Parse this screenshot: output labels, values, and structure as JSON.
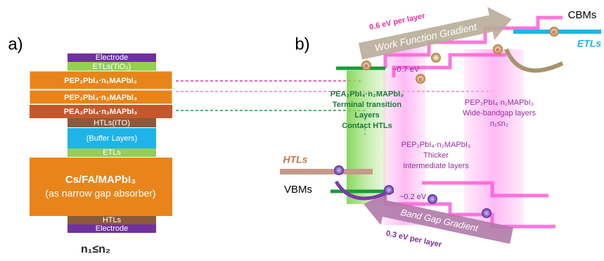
{
  "panel_a": {
    "label": "a)",
    "layers": [
      "Electrode",
      "ETLs(TiO₂)",
      "PEP₂PbI₄·n₁MAPbI₃",
      "PEP₂PbI₄·n₂MAPbI₃",
      "PEA₂PbI₄·n₂MAPbI₃",
      "HTLs(ITO)",
      "(Buffer Layers)",
      "ETLs",
      "Cs/FA/MAPbI₃",
      "(as narrow gap absorber)",
      "HTLs",
      "Electrode"
    ],
    "note": "n₁≤n₂"
  },
  "panel_b": {
    "label": "b)",
    "top_arrow": {
      "value": "0.6 eV per layer",
      "label": "Work Function Gradient"
    },
    "bottom_arrow": {
      "value": "0.3 eV per layer",
      "label": "Band Gap Gradient"
    },
    "cbm": "CBMs",
    "etl": "ETLs",
    "vbm": "VBMs",
    "htl": "HTLs",
    "offset_top": "~0.7 eV",
    "offset_bottom": "~0.2 eV",
    "electron": "e",
    "contact": [
      "PEA₂PbI₄·n₂MAPbI₃",
      "Terminal transition",
      "Layers",
      "Contact HTLs"
    ],
    "intermediate": [
      "PEP₂PbI₄·n₂MAPbI₃",
      "Thicker",
      "Intermediate layers"
    ],
    "wide": [
      "PEP₂PbI₄·n₁MAPbI₃",
      "Wide-bandgap layers",
      "n₁≤n₂"
    ]
  }
}
